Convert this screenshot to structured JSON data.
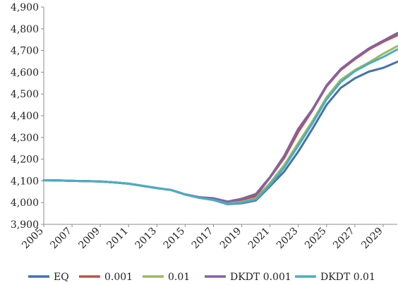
{
  "chart_data": {
    "type": "line",
    "title": "",
    "xlabel": "",
    "ylabel": "",
    "xlim": [
      2005,
      2030
    ],
    "ylim": [
      3900,
      4900
    ],
    "y_ticks": [
      3900,
      4000,
      4100,
      4200,
      4300,
      4400,
      4500,
      4600,
      4700,
      4800,
      4900
    ],
    "y_tick_labels": [
      "3,900",
      "4,000",
      "4,100",
      "4,200",
      "4,300",
      "4,400",
      "4,500",
      "4,600",
      "4,700",
      "4,800",
      "4,900"
    ],
    "x_ticks": [
      2005,
      2007,
      2009,
      2011,
      2013,
      2015,
      2017,
      2019,
      2021,
      2023,
      2025,
      2027,
      2029
    ],
    "x_tick_labels": [
      "2005",
      "2007",
      "2009",
      "2011",
      "2013",
      "2015",
      "2017",
      "2019",
      "2021",
      "2023",
      "2025",
      "2027",
      "2029"
    ],
    "grid": false,
    "legend_position": "bottom",
    "x": [
      2005,
      2006,
      2007,
      2008,
      2009,
      2010,
      2011,
      2012,
      2013,
      2014,
      2015,
      2016,
      2017,
      2018,
      2019,
      2020,
      2021,
      2022,
      2023,
      2024,
      2025,
      2026,
      2027,
      2028,
      2029,
      2030
    ],
    "series": [
      {
        "name": "EQ",
        "color": "#4472a8",
        "values": [
          4103,
          4102,
          4100,
          4099,
          4097,
          4093,
          4087,
          4077,
          4067,
          4058,
          4037,
          4022,
          4012,
          3993,
          3997,
          4010,
          4075,
          4143,
          4235,
          4340,
          4450,
          4528,
          4572,
          4603,
          4620,
          4648
        ]
      },
      {
        "name": "0.001",
        "color": "#c0504d",
        "values": [
          4103,
          4102,
          4100,
          4099,
          4097,
          4093,
          4087,
          4077,
          4067,
          4058,
          4038,
          4024,
          4018,
          4003,
          4013,
          4030,
          4115,
          4205,
          4325,
          4425,
          4535,
          4610,
          4660,
          4705,
          4740,
          4770
        ]
      },
      {
        "name": "0.01",
        "color": "#9bbb59",
        "values": [
          4103,
          4102,
          4100,
          4099,
          4097,
          4093,
          4087,
          4077,
          4067,
          4058,
          4037,
          4022,
          4014,
          3997,
          4003,
          4020,
          4090,
          4172,
          4275,
          4375,
          4485,
          4565,
          4610,
          4645,
          4685,
          4720
        ]
      },
      {
        "name": "DKDT 0.001",
        "color": "#8064a2",
        "values": [
          4103,
          4102,
          4100,
          4099,
          4097,
          4093,
          4087,
          4077,
          4067,
          4058,
          4038,
          4025,
          4020,
          4005,
          4018,
          4040,
          4118,
          4215,
          4340,
          4430,
          4540,
          4615,
          4665,
          4710,
          4745,
          4780
        ]
      },
      {
        "name": "DKDT 0.01",
        "color": "#4bacc6",
        "values": [
          4103,
          4102,
          4100,
          4099,
          4097,
          4093,
          4087,
          4077,
          4067,
          4058,
          4037,
          4022,
          4012,
          3995,
          4000,
          4015,
          4082,
          4162,
          4262,
          4365,
          4475,
          4555,
          4605,
          4640,
          4670,
          4705
        ]
      }
    ]
  }
}
